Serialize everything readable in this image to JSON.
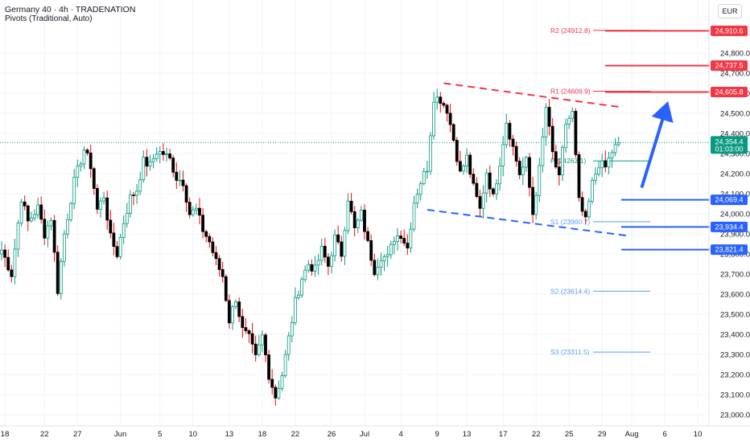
{
  "header": {
    "title": "Germany 40 · 4h · TRADENATION",
    "subtitle": "Pivots (Traditional, Auto)",
    "currency": "EUR"
  },
  "colors": {
    "up": "#089981",
    "down": "#ff0000",
    "body_up": "#089981",
    "candle": "#000000",
    "resistance": "#f23645",
    "support": "#2962ff",
    "last_price": "#089981",
    "pivot": "#5b9cf6",
    "arrow": "#2962ff"
  },
  "chart_data": {
    "type": "candlestick",
    "instrument": "Germany 40",
    "timeframe": "4h",
    "ylim": [
      22950,
      25050
    ],
    "y_ticks": [
      23000,
      23100,
      23200,
      23300,
      23400,
      23500,
      23600,
      23700,
      23800,
      23900,
      24000,
      24100,
      24200,
      24300,
      24400,
      24500,
      24600,
      24700,
      24800
    ],
    "y_tick_labels": [
      "23,000.0",
      "23,100.0",
      "23,200.0",
      "23,300.0",
      "23,400.0",
      "23,500.0",
      "23,600.0",
      "23,700.0",
      "23,800.0",
      "23,900.0",
      "24,000.0",
      "24,100.0",
      "24,200.0",
      "24,300.0",
      "24,400.0",
      "24,500.0",
      "24,600.0",
      "24,700.0",
      "24,800.0"
    ],
    "x_ticks": [
      {
        "label": "18",
        "bar": 1
      },
      {
        "label": "22",
        "bar": 13
      },
      {
        "label": "27",
        "bar": 23
      },
      {
        "label": "Jun",
        "bar": 36
      },
      {
        "label": "5",
        "bar": 48
      },
      {
        "label": "10",
        "bar": 58
      },
      {
        "label": "13",
        "bar": 69
      },
      {
        "label": "18",
        "bar": 79
      },
      {
        "label": "22",
        "bar": 89
      },
      {
        "label": "26",
        "bar": 100
      },
      {
        "label": "Jul",
        "bar": 110
      },
      {
        "label": "4",
        "bar": 121
      },
      {
        "label": "9",
        "bar": 132
      },
      {
        "label": "13",
        "bar": 141
      },
      {
        "label": "17",
        "bar": 152
      },
      {
        "label": "22",
        "bar": 162
      },
      {
        "label": "25",
        "bar": 172
      },
      {
        "label": "29",
        "bar": 182
      },
      {
        "label": "Aug",
        "bar": 191
      },
      {
        "label": "6",
        "bar": 201
      },
      {
        "label": "10",
        "bar": 211
      }
    ],
    "price_levels": [
      {
        "name": "R2 pivot",
        "label": "24,910.6",
        "value": 24910.6,
        "type": "resistance"
      },
      {
        "name": "resistance",
        "label": "24,737.5",
        "value": 24737.5,
        "type": "resistance"
      },
      {
        "name": "R1 pivot",
        "label": "24,605.8",
        "value": 24605.8,
        "type": "resistance"
      },
      {
        "name": "support",
        "label": "24,069.4",
        "value": 24069.4,
        "type": "support"
      },
      {
        "name": "support",
        "label": "23,934.4",
        "value": 23934.4,
        "type": "support"
      },
      {
        "name": "support",
        "label": "23,821.4",
        "value": 23821.4,
        "type": "support"
      }
    ],
    "last_price": {
      "label": "24,354.4",
      "value": 24354.4,
      "countdown": "01:03:00"
    },
    "pivots": [
      {
        "label": "R2 (24912.8)",
        "value": 24912.8,
        "color": "#f23645"
      },
      {
        "label": "R1 (24609.9)",
        "value": 24609.9,
        "color": "#f23645"
      },
      {
        "label": "P (24263.1)",
        "value": 24263.1,
        "color": "#089981"
      },
      {
        "label": "S1 (23960.7)",
        "value": 23960.7,
        "color": "#5b9cf6"
      },
      {
        "label": "S2 (23614.4)",
        "value": 23614.4,
        "color": "#5b9cf6"
      },
      {
        "label": "S3 (23311.5)",
        "value": 23311.5,
        "color": "#5b9cf6"
      }
    ],
    "trendlines": [
      {
        "name": "upper-resistance-trendline",
        "color": "#f23645",
        "from": {
          "bar": 134,
          "price": 24650
        },
        "to": {
          "bar": 188,
          "price": 24530
        }
      },
      {
        "name": "lower-support-trendline",
        "color": "#2962ff",
        "from": {
          "bar": 129,
          "price": 24020
        },
        "to": {
          "bar": 190,
          "price": 23890
        }
      }
    ],
    "arrow": {
      "from": {
        "bar": 194,
        "price": 24130
      },
      "to": {
        "bar": 202,
        "price": 24560
      }
    },
    "anchors": [
      [
        0,
        23820
      ],
      [
        3,
        23700
      ],
      [
        6,
        24080
      ],
      [
        8,
        23960
      ],
      [
        11,
        24030
      ],
      [
        13,
        23900
      ],
      [
        15,
        23980
      ],
      [
        17,
        23620
      ],
      [
        19,
        23900
      ],
      [
        22,
        24160
      ],
      [
        25,
        24320
      ],
      [
        27,
        24240
      ],
      [
        29,
        24020
      ],
      [
        31,
        24090
      ],
      [
        33,
        23880
      ],
      [
        35,
        23800
      ],
      [
        37,
        23960
      ],
      [
        39,
        24080
      ],
      [
        41,
        24120
      ],
      [
        43,
        24260
      ],
      [
        45,
        24240
      ],
      [
        47,
        24310
      ],
      [
        49,
        24300
      ],
      [
        51,
        24270
      ],
      [
        53,
        24180
      ],
      [
        55,
        24160
      ],
      [
        57,
        24000
      ],
      [
        59,
        24020
      ],
      [
        61,
        23920
      ],
      [
        63,
        23860
      ],
      [
        65,
        23760
      ],
      [
        67,
        23690
      ],
      [
        69,
        23470
      ],
      [
        71,
        23580
      ],
      [
        73,
        23420
      ],
      [
        75,
        23380
      ],
      [
        77,
        23280
      ],
      [
        79,
        23390
      ],
      [
        81,
        23200
      ],
      [
        83,
        23090
      ],
      [
        85,
        23200
      ],
      [
        87,
        23380
      ],
      [
        89,
        23560
      ],
      [
        91,
        23680
      ],
      [
        93,
        23750
      ],
      [
        95,
        23720
      ],
      [
        97,
        23820
      ],
      [
        99,
        23740
      ],
      [
        101,
        23880
      ],
      [
        103,
        23800
      ],
      [
        105,
        24080
      ],
      [
        107,
        23920
      ],
      [
        109,
        24000
      ],
      [
        111,
        23850
      ],
      [
        113,
        23720
      ],
      [
        115,
        23790
      ],
      [
        117,
        23780
      ],
      [
        119,
        23880
      ],
      [
        121,
        23900
      ],
      [
        123,
        23830
      ],
      [
        125,
        24060
      ],
      [
        127,
        24160
      ],
      [
        129,
        24230
      ],
      [
        131,
        24580
      ],
      [
        133,
        24570
      ],
      [
        135,
        24520
      ],
      [
        137,
        24370
      ],
      [
        139,
        24200
      ],
      [
        141,
        24280
      ],
      [
        143,
        24130
      ],
      [
        145,
        24020
      ],
      [
        147,
        24210
      ],
      [
        149,
        24080
      ],
      [
        151,
        24260
      ],
      [
        153,
        24460
      ],
      [
        155,
        24330
      ],
      [
        157,
        24200
      ],
      [
        159,
        24260
      ],
      [
        161,
        24000
      ],
      [
        163,
        24220
      ],
      [
        165,
        24530
      ],
      [
        167,
        24300
      ],
      [
        169,
        24170
      ],
      [
        171,
        24450
      ],
      [
        173,
        24500
      ],
      [
        175,
        24060
      ],
      [
        177,
        23960
      ],
      [
        179,
        24150
      ],
      [
        181,
        24250
      ],
      [
        183,
        24230
      ],
      [
        185,
        24310
      ],
      [
        187,
        24354
      ]
    ]
  }
}
